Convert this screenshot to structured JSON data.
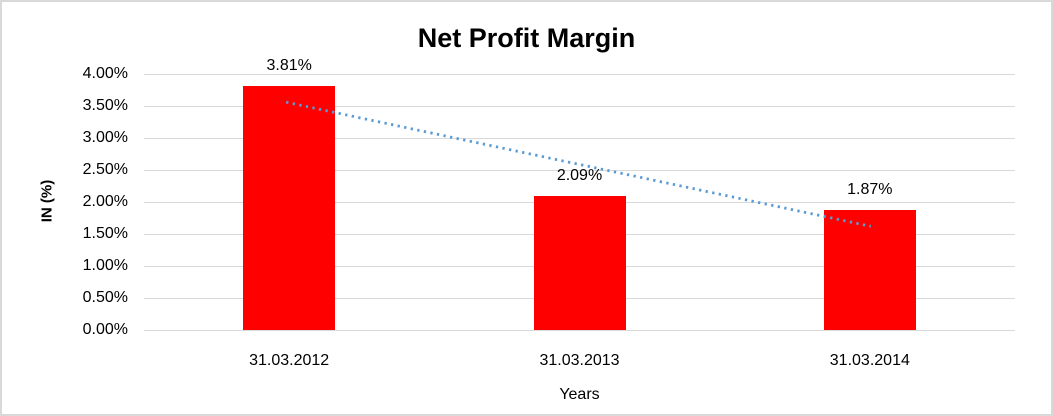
{
  "chart_data": {
    "type": "bar",
    "title": "Net Profit Margin",
    "xlabel": "Years",
    "ylabel": "IN (%)",
    "categories": [
      "31.03.2012",
      "31.03.2013",
      "31.03.2014"
    ],
    "values": [
      3.81,
      2.09,
      1.87
    ],
    "data_labels": [
      "3.81%",
      "2.09%",
      "1.87%"
    ],
    "ylim": [
      0,
      4
    ],
    "ytick_step": 0.5,
    "ytick_labels": [
      "0.00%",
      "0.50%",
      "1.00%",
      "1.50%",
      "2.00%",
      "2.50%",
      "3.00%",
      "3.50%",
      "4.00%"
    ],
    "grid": true,
    "legend": "none",
    "bar_color": "#ff0000",
    "gridline_color": "#d9d9d9",
    "frame_border_color": "#d9d9d9",
    "text_color": "#000000",
    "trendline": {
      "type": "linear",
      "style": "dotted",
      "color": "#5b9bd5",
      "start_value": 3.56,
      "end_value": 1.62
    }
  }
}
